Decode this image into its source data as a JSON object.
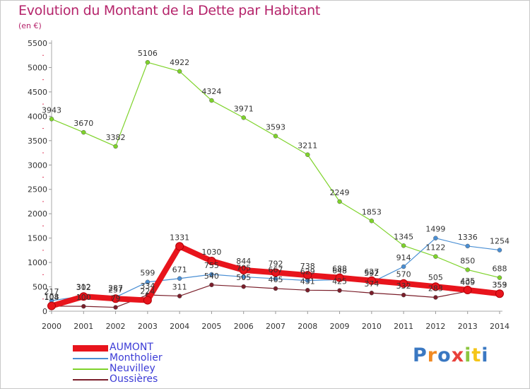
{
  "title": "Evolution du Montant de la Dette par Habitant",
  "unit_label": "(en €)",
  "logo": {
    "text": "Proxiti",
    "letter_colors": [
      "#3a78c2",
      "#f08a24",
      "#3a78c2",
      "#e8403a",
      "#8cc63f",
      "#f5c518",
      "#3a78c2"
    ]
  },
  "chart_data": {
    "type": "line",
    "title": "Evolution du Montant de la Dette par Habitant",
    "ylabel": "(en €)",
    "x": [
      "2000",
      "2001",
      "2002",
      "2003",
      "2004",
      "2005",
      "2006",
      "2007",
      "2008",
      "2009",
      "2010",
      "2011",
      "2012",
      "2013",
      "2014"
    ],
    "ylim": [
      0,
      5500
    ],
    "yticks": [
      0,
      500,
      1000,
      1500,
      2000,
      2500,
      3000,
      3500,
      4000,
      4500,
      5000,
      5500
    ],
    "grid": false,
    "legend_position": "bottom-left",
    "series": [
      {
        "name": "AUMONT",
        "color": "#e8141c",
        "values": [
          108,
          302,
          257,
          224,
          1331,
          1030,
          844,
          792,
          738,
          688,
          627,
          570,
          505,
          435,
          359
        ]
      },
      {
        "name": "Montholier",
        "color": "#4a8fd4",
        "values": [
          217,
          312,
          287,
          599,
          671,
          755,
          705,
          667,
          629,
          648,
          592,
          914,
          1499,
          1336,
          1254
        ]
      },
      {
        "name": "Neuvilley",
        "color": "#7ed32a",
        "values": [
          3943,
          3670,
          3382,
          5106,
          4922,
          4324,
          3971,
          3593,
          3211,
          2249,
          1853,
          1345,
          1122,
          850,
          688
        ]
      },
      {
        "name": "Oussières",
        "color": "#7a1e2a",
        "values": [
          104,
          100,
          79,
          334,
          311,
          540,
          505,
          465,
          431,
          425,
          374,
          332,
          283,
          409,
          353
        ]
      }
    ]
  }
}
